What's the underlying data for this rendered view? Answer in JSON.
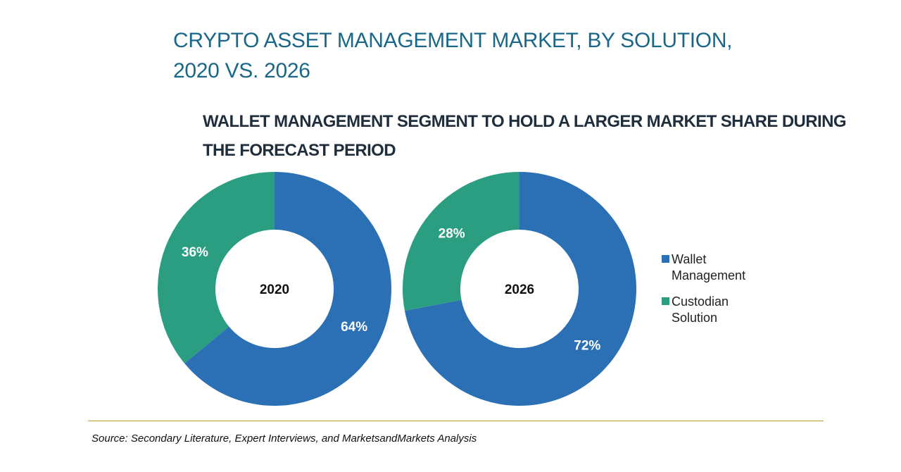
{
  "header": {
    "title_line1": "CRYPTO ASSET MANAGEMENT MARKET, BY SOLUTION,",
    "title_line2": "2020 VS. 2026",
    "subtitle_line1": "WALLET MANAGEMENT SEGMENT TO HOLD A LARGER MARKET SHARE DURING",
    "subtitle_line2": "THE FORECAST PERIOD"
  },
  "legend": {
    "items": [
      {
        "label": "Wallet Management",
        "color": "#2b70b4"
      },
      {
        "label": "Custodian Solution",
        "color": "#2b9e82"
      }
    ]
  },
  "footer": {
    "source": "Source: Secondary Literature, Expert Interviews, and MarketsandMarkets Analysis"
  },
  "chart_data": {
    "type": "pie",
    "style": "donut",
    "title": "CRYPTO ASSET MANAGEMENT MARKET, BY SOLUTION, 2020 VS. 2026",
    "categories": [
      "Wallet Management",
      "Custodian Solution"
    ],
    "charts": [
      {
        "center_label": "2020",
        "slices": [
          {
            "name": "Wallet Management",
            "value": 64,
            "label": "64%"
          },
          {
            "name": "Custodian Solution",
            "value": 36,
            "label": "36%"
          }
        ]
      },
      {
        "center_label": "2026",
        "slices": [
          {
            "name": "Wallet Management",
            "value": 72,
            "label": "72%"
          },
          {
            "name": "Custodian Solution",
            "value": 28,
            "label": "28%"
          }
        ]
      }
    ],
    "colors": [
      "#2b70b4",
      "#2b9e82"
    ],
    "legend_position": "right"
  }
}
